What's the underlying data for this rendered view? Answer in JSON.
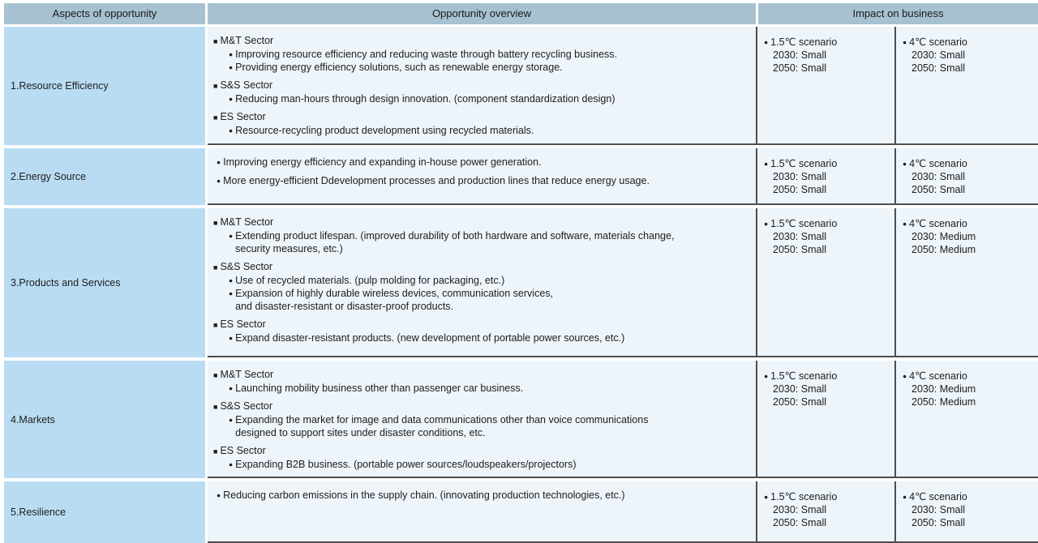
{
  "header": {
    "aspects": "Aspects of opportunity",
    "overview": "Opportunity overview",
    "impact": "Impact on business"
  },
  "glyphs": {
    "sector_bullet": "■",
    "item_bullet": "●"
  },
  "colors": {
    "header_bg": "#a7c1d0",
    "aspect_column_bg": "#b9dcf3",
    "cell_bg": "#edf4fa",
    "border_dark": "#4e4e50",
    "text": "#1d1d1d"
  },
  "rows": [
    {
      "aspect": "1.Resource Efficiency",
      "overview": [
        {
          "type": "sector",
          "text": "M&T Sector"
        },
        {
          "type": "item",
          "lines": [
            "Improving resource efficiency and reducing waste through battery recycling business."
          ]
        },
        {
          "type": "item",
          "lines": [
            "Providing energy efficiency solutions, such as renewable energy storage."
          ]
        },
        {
          "type": "sector",
          "text": "S&S Sector"
        },
        {
          "type": "item",
          "lines": [
            "Reducing man-hours through design innovation. (component standardization design)"
          ]
        },
        {
          "type": "sector",
          "text": "ES Sector"
        },
        {
          "type": "item",
          "lines": [
            "Resource-recycling product development using recycled materials."
          ]
        }
      ],
      "impacts": [
        {
          "label": "1.5℃ scenario",
          "values": [
            "2030: Small",
            "2050: Small"
          ]
        },
        {
          "label": "4℃ scenario",
          "values": [
            "2030: Small",
            "2050: Small"
          ]
        }
      ]
    },
    {
      "aspect": "2.Energy Source",
      "overview": [
        {
          "type": "item",
          "lines": [
            "Improving energy efficiency and expanding in-house power generation."
          ]
        },
        {
          "type": "item",
          "lines": [
            "More energy-efficient Ddevelopment processes and production lines that reduce energy usage."
          ]
        }
      ],
      "impacts": [
        {
          "label": "1.5℃ scenario",
          "values": [
            "2030: Small",
            "2050: Small"
          ]
        },
        {
          "label": "4℃ scenario",
          "values": [
            "2030: Small",
            "2050: Small"
          ]
        }
      ]
    },
    {
      "aspect": "3.Products and Services",
      "overview": [
        {
          "type": "sector",
          "text": "M&T Sector"
        },
        {
          "type": "item",
          "lines": [
            "Extending product lifespan. (improved durability of both hardware and software, materials change,",
            "security measures, etc.)"
          ]
        },
        {
          "type": "sector",
          "text": "S&S Sector"
        },
        {
          "type": "item",
          "lines": [
            "Use of recycled materials. (pulp molding for packaging, etc.)"
          ]
        },
        {
          "type": "item",
          "lines": [
            "Expansion of highly durable wireless devices, communication services,",
            "and disaster-resistant or disaster-proof products."
          ]
        },
        {
          "type": "sector",
          "text": "ES Sector"
        },
        {
          "type": "item",
          "lines": [
            "Expand disaster-resistant products. (new development of portable power sources, etc.)"
          ]
        }
      ],
      "impacts": [
        {
          "label": "1.5℃ scenario",
          "values": [
            "2030: Small",
            "2050: Small"
          ]
        },
        {
          "label": "4℃ scenario",
          "values": [
            "2030: Medium",
            "2050: Medium"
          ]
        }
      ]
    },
    {
      "aspect": "4.Markets",
      "overview": [
        {
          "type": "sector",
          "text": "M&T Sector"
        },
        {
          "type": "item",
          "lines": [
            "Launching mobility business other than passenger car business."
          ]
        },
        {
          "type": "sector",
          "text": "S&S Sector"
        },
        {
          "type": "item",
          "lines": [
            "Expanding the market for image and data communications other than voice communications",
            "designed to support sites under disaster conditions, etc."
          ]
        },
        {
          "type": "sector",
          "text": "ES Sector"
        },
        {
          "type": "item",
          "lines": [
            "Expanding B2B business. (portable power sources/loudspeakers/projectors)"
          ]
        }
      ],
      "impacts": [
        {
          "label": "1.5℃ scenario",
          "values": [
            "2030: Small",
            "2050: Small"
          ]
        },
        {
          "label": "4℃ scenario",
          "values": [
            "2030: Medium",
            "2050: Medium"
          ]
        }
      ]
    },
    {
      "aspect": "5.Resilience",
      "overview": [
        {
          "type": "item",
          "lines": [
            "Reducing carbon emissions in the supply chain. (innovating production technologies, etc.)"
          ]
        }
      ],
      "impacts": [
        {
          "label": "1.5℃ scenario",
          "values": [
            "2030: Small",
            "2050: Small"
          ]
        },
        {
          "label": "4℃ scenario",
          "values": [
            "2030: Small",
            "2050: Small"
          ]
        }
      ]
    }
  ]
}
